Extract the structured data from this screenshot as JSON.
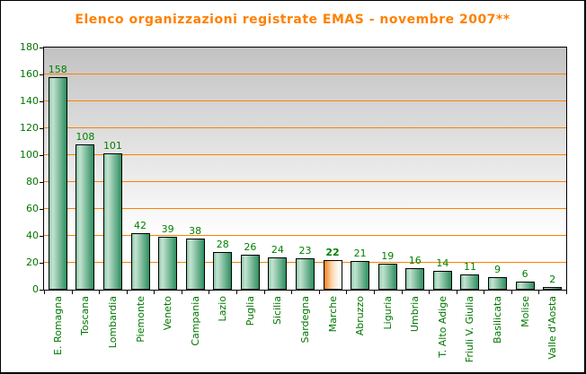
{
  "title": "Elenco organizzazioni registrate EMAS - novembre 2007**",
  "chart_data": {
    "type": "bar",
    "title": "Elenco organizzazioni registrate EMAS - novembre 2007**",
    "categories": [
      "E. Romagna",
      "Toscana",
      "Lombardia",
      "Piemonte",
      "Veneto",
      "Campania",
      "Lazio",
      "Puglia",
      "Sicilia",
      "Sardegna",
      "Marche",
      "Abruzzo",
      "Liguria",
      "Umbria",
      "T. Alto Adige",
      "Friuli V. Giulia",
      "Basilicata",
      "Molise",
      "Valle d'Aosta"
    ],
    "values": [
      158,
      108,
      101,
      42,
      39,
      38,
      28,
      26,
      24,
      23,
      22,
      21,
      19,
      16,
      14,
      11,
      9,
      6,
      2
    ],
    "value_labels_shown": true,
    "highlighted_category": "Marche",
    "highlighted_index": 10,
    "highlighted_value": 22,
    "xlabel": "",
    "ylabel": "",
    "ylim": [
      0,
      180
    ],
    "yticks": [
      0,
      20,
      40,
      60,
      80,
      100,
      120,
      140,
      160,
      180
    ],
    "grid": true,
    "legend": false,
    "colors": {
      "title_text": "#FF8000",
      "gridline": "#FF8000",
      "bar_edge_start": "#8CC7A8",
      "bar_highlight_sheen": "#C4E3D2",
      "bar_end": "#2E8F5F",
      "bar_border": "#000000",
      "highlight_bar_start": "#F58220",
      "highlight_bar_mid": "#FBD9B4",
      "highlight_bar_end": "#FFFFFF",
      "value_label_text": "#008000",
      "axis_label_text": "#007700",
      "plot_bg_top": "#C2C2C2",
      "plot_bg_bottom": "#FFFFFF"
    }
  }
}
